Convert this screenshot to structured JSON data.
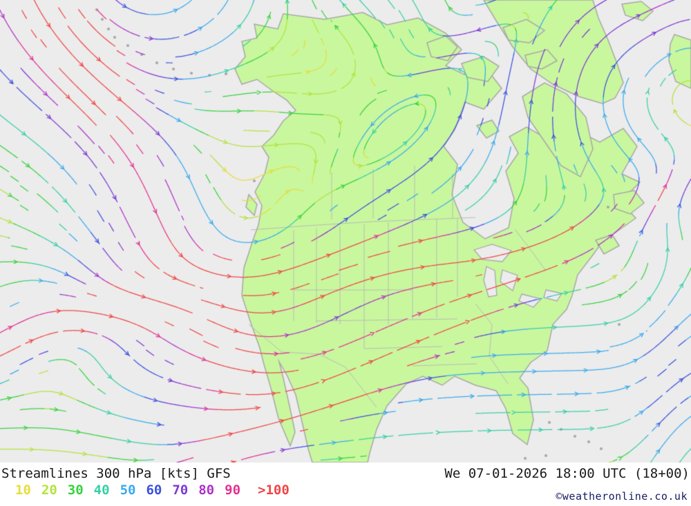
{
  "footer": {
    "title": "Streamlines 300 hPa [kts] GFS",
    "datetime": "We 07-01-2026 18:00 UTC (18+00)",
    "copyright": "©weatheronline.co.uk",
    "legend": [
      {
        "label": "10",
        "color": "#e8dc3a"
      },
      {
        "label": "20",
        "color": "#b4e23c"
      },
      {
        "label": "30",
        "color": "#35d23c"
      },
      {
        "label": "40",
        "color": "#35cfa6"
      },
      {
        "label": "50",
        "color": "#38a9ee"
      },
      {
        "label": "60",
        "color": "#3a4fe0"
      },
      {
        "label": "70",
        "color": "#7c38d4"
      },
      {
        "label": "80",
        "color": "#ae32c8"
      },
      {
        "label": "90",
        "color": "#e23192"
      },
      {
        "label": ">100",
        "color": "#f04545"
      }
    ]
  },
  "map": {
    "colors": {
      "ocean": "#ececec",
      "land": "#c9f79e",
      "coast": "#a8a8a8",
      "border": "#b6b6b6"
    }
  }
}
